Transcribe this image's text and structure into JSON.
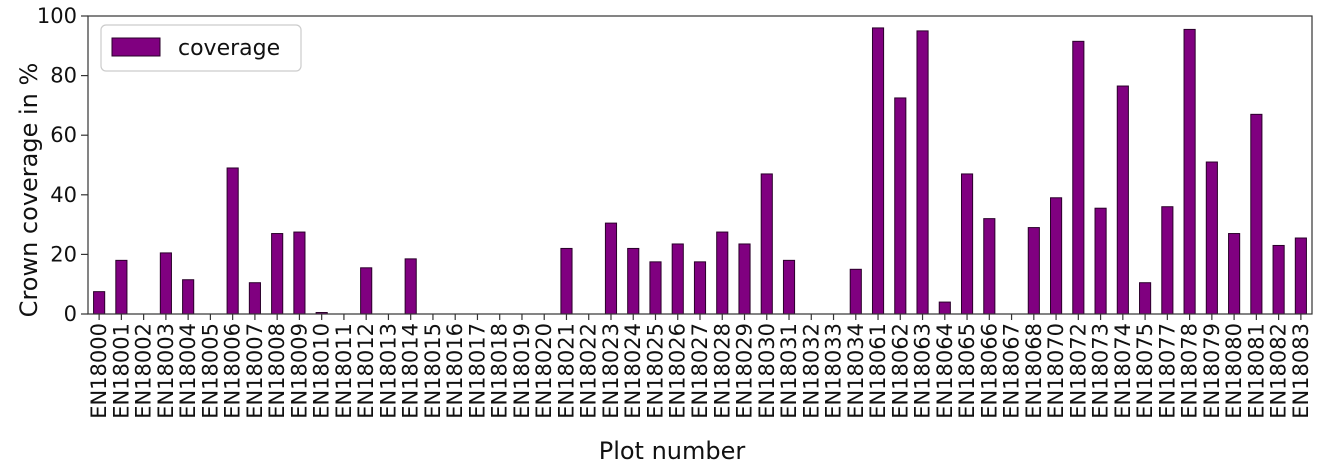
{
  "chart_data": {
    "type": "bar",
    "xlabel": "Plot number",
    "ylabel": "Crown coverage in %",
    "ylim": [
      0,
      100
    ],
    "yticks": [
      0,
      20,
      40,
      60,
      80,
      100
    ],
    "grid": false,
    "legend_position": "top-left",
    "bar_color": "#800080",
    "bar_edge_color": "#2a002a",
    "categories": [
      "EN18000",
      "EN18001",
      "EN18002",
      "EN18003",
      "EN18004",
      "EN18005",
      "EN18006",
      "EN18007",
      "EN18008",
      "EN18009",
      "EN18010",
      "EN18011",
      "EN18012",
      "EN18013",
      "EN18014",
      "EN18015",
      "EN18016",
      "EN18017",
      "EN18018",
      "EN18019",
      "EN18020",
      "EN18021",
      "EN18022",
      "EN18023",
      "EN18024",
      "EN18025",
      "EN18026",
      "EN18027",
      "EN18028",
      "EN18029",
      "EN18030",
      "EN18031",
      "EN18032",
      "EN18033",
      "EN18034",
      "EN18061",
      "EN18062",
      "EN18063",
      "EN18064",
      "EN18065",
      "EN18066",
      "EN18067",
      "EN18068",
      "EN18070",
      "EN18072",
      "EN18073",
      "EN18074",
      "EN18075",
      "EN18077",
      "EN18078",
      "EN18079",
      "EN18080",
      "EN18081",
      "EN18082",
      "EN18083"
    ],
    "series": [
      {
        "name": "coverage",
        "values": [
          7.5,
          18,
          0,
          20.5,
          11.5,
          0,
          49,
          10.5,
          27,
          27.5,
          0.5,
          0,
          15.5,
          0,
          18.5,
          0,
          0,
          0,
          0,
          0,
          0,
          22,
          0,
          30.5,
          22,
          17.5,
          23.5,
          17.5,
          27.5,
          23.5,
          47,
          18,
          0,
          0,
          15,
          96,
          72.5,
          95,
          4,
          47,
          32,
          0,
          29,
          39,
          91.5,
          35.5,
          76.5,
          10.5,
          36,
          95.5,
          51,
          27,
          67,
          23,
          25.5
        ]
      }
    ]
  }
}
